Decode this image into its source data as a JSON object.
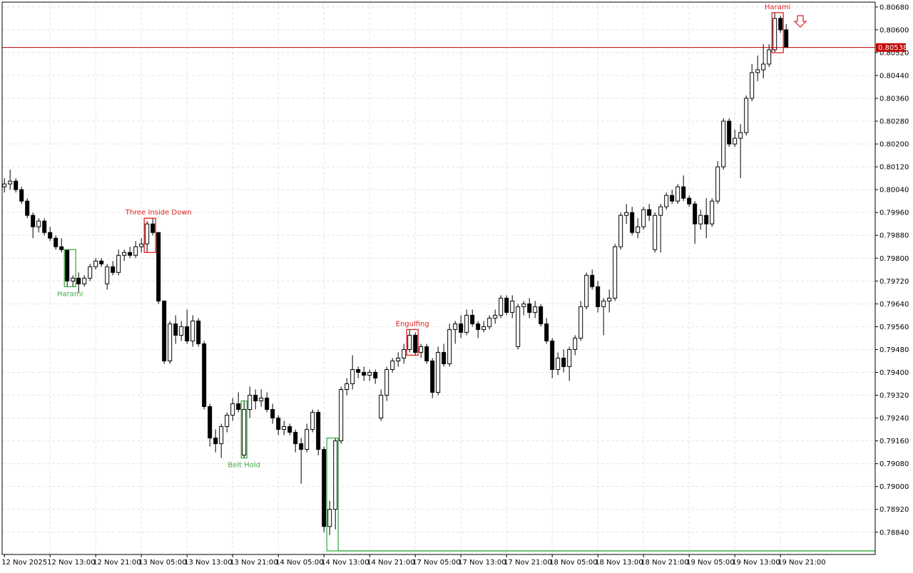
{
  "chart_data": {
    "type": "candlestick",
    "up_color": "#ffffff",
    "down_color": "#000000",
    "outline_color": "#000000",
    "grid": true,
    "xlim": [
      -0.4,
      152.6
    ],
    "ylim": [
      0.78762,
      0.80697
    ],
    "xticks": [
      {
        "value": 0,
        "label": "12 Nov 2025"
      },
      {
        "value": 8,
        "label": "12 Nov 13:00"
      },
      {
        "value": 16,
        "label": "12 Nov 21:00"
      },
      {
        "value": 24,
        "label": "13 Nov 05:00"
      },
      {
        "value": 32,
        "label": "13 Nov 13:00"
      },
      {
        "value": 40,
        "label": "13 Nov 21:00"
      },
      {
        "value": 48,
        "label": "14 Nov 05:00"
      },
      {
        "value": 56,
        "label": "14 Nov 13:00"
      },
      {
        "value": 64,
        "label": "14 Nov 21:00"
      },
      {
        "value": 72,
        "label": "17 Nov 05:00"
      },
      {
        "value": 80,
        "label": "17 Nov 13:00"
      },
      {
        "value": 88,
        "label": "17 Nov 21:00"
      },
      {
        "value": 96,
        "label": "18 Nov 05:00"
      },
      {
        "value": 104,
        "label": "18 Nov 13:00"
      },
      {
        "value": 112,
        "label": "18 Nov 21:00"
      },
      {
        "value": 120,
        "label": "19 Nov 05:00"
      },
      {
        "value": 128,
        "label": "19 Nov 13:00"
      },
      {
        "value": 136,
        "label": "19 Nov 21:00"
      }
    ],
    "yticks": [
      {
        "value": 0.7884,
        "label": "0.78840"
      },
      {
        "value": 0.7892,
        "label": "0.78920"
      },
      {
        "value": 0.79,
        "label": "0.79000"
      },
      {
        "value": 0.7908,
        "label": "0.79080"
      },
      {
        "value": 0.7916,
        "label": "0.79160"
      },
      {
        "value": 0.7924,
        "label": "0.79240"
      },
      {
        "value": 0.7932,
        "label": "0.79320"
      },
      {
        "value": 0.794,
        "label": "0.79400"
      },
      {
        "value": 0.7948,
        "label": "0.79480"
      },
      {
        "value": 0.7956,
        "label": "0.79560"
      },
      {
        "value": 0.7964,
        "label": "0.79640"
      },
      {
        "value": 0.7972,
        "label": "0.79720"
      },
      {
        "value": 0.798,
        "label": "0.79800"
      },
      {
        "value": 0.7988,
        "label": "0.79880"
      },
      {
        "value": 0.7996,
        "label": "0.79960"
      },
      {
        "value": 0.8004,
        "label": "0.80040"
      },
      {
        "value": 0.8012,
        "label": "0.80120"
      },
      {
        "value": 0.802,
        "label": "0.80200"
      },
      {
        "value": 0.8028,
        "label": "0.80280"
      },
      {
        "value": 0.8036,
        "label": "0.80360"
      },
      {
        "value": 0.8044,
        "label": "0.80440"
      },
      {
        "value": 0.8052,
        "label": "0.80520"
      },
      {
        "value": 0.806,
        "label": "0.80600"
      },
      {
        "value": 0.8068,
        "label": "0.80680"
      }
    ],
    "current_price": 0.80538,
    "current_price_color": "#c00000",
    "patterns": [
      {
        "text": "Harami",
        "color": "#3cb043"
      },
      {
        "text": "Three Inside Down",
        "color": "#e02020"
      },
      {
        "text": "Belt Hold",
        "color": "#3cb043"
      },
      {
        "text": "Engulfing",
        "color": "#e02020"
      },
      {
        "text": "Harami",
        "color": "#e02020"
      }
    ],
    "ohlc": [
      [
        0.8005,
        0.8008,
        0.8003,
        0.8006
      ],
      [
        0.8006,
        0.8011,
        0.8004,
        0.8007
      ],
      [
        0.8007,
        0.8008,
        0.8003,
        0.8004
      ],
      [
        0.8004,
        0.8005,
        0.7999,
        0.8
      ],
      [
        0.8,
        0.8001,
        0.7994,
        0.7995
      ],
      [
        0.7995,
        0.7996,
        0.7987,
        0.7991
      ],
      [
        0.7991,
        0.7994,
        0.7989,
        0.7993
      ],
      [
        0.7993,
        0.7994,
        0.7988,
        0.7989
      ],
      [
        0.7989,
        0.7991,
        0.7986,
        0.7987
      ],
      [
        0.7987,
        0.7988,
        0.7983,
        0.7984
      ],
      [
        0.7984,
        0.7987,
        0.7982,
        0.7983
      ],
      [
        0.7983,
        0.7983,
        0.797,
        0.7972
      ],
      [
        0.7972,
        0.7974,
        0.797,
        0.7973
      ],
      [
        0.7973,
        0.7975,
        0.7968,
        0.7971
      ],
      [
        0.7971,
        0.7974,
        0.797,
        0.7973
      ],
      [
        0.7973,
        0.7978,
        0.7972,
        0.7977
      ],
      [
        0.7977,
        0.798,
        0.7976,
        0.7979
      ],
      [
        0.7979,
        0.798,
        0.7977,
        0.7978
      ],
      [
        0.7971,
        0.7978,
        0.7969,
        0.7977
      ],
      [
        0.7977,
        0.7979,
        0.7974,
        0.7975
      ],
      [
        0.7975,
        0.7983,
        0.7974,
        0.7981
      ],
      [
        0.7981,
        0.7983,
        0.7979,
        0.7982
      ],
      [
        0.7982,
        0.7984,
        0.798,
        0.7981
      ],
      [
        0.7981,
        0.7986,
        0.798,
        0.7984
      ],
      [
        0.7984,
        0.7987,
        0.7982,
        0.7985
      ],
      [
        0.7985,
        0.7993,
        0.7982,
        0.7992
      ],
      [
        0.7992,
        0.7994,
        0.7988,
        0.7989
      ],
      [
        0.7989,
        0.7989,
        0.7964,
        0.7965
      ],
      [
        0.7965,
        0.7965,
        0.7943,
        0.7944
      ],
      [
        0.7944,
        0.7958,
        0.7943,
        0.7957
      ],
      [
        0.7957,
        0.796,
        0.795,
        0.7953
      ],
      [
        0.7953,
        0.7958,
        0.7951,
        0.7956
      ],
      [
        0.7956,
        0.7962,
        0.795,
        0.7951
      ],
      [
        0.7951,
        0.796,
        0.7949,
        0.7958
      ],
      [
        0.7958,
        0.7959,
        0.7949,
        0.795
      ],
      [
        0.795,
        0.7951,
        0.7927,
        0.7928
      ],
      [
        0.7928,
        0.7929,
        0.7914,
        0.7917
      ],
      [
        0.7917,
        0.792,
        0.7912,
        0.7915
      ],
      [
        0.7915,
        0.7922,
        0.791,
        0.7921
      ],
      [
        0.7921,
        0.7926,
        0.7919,
        0.7925
      ],
      [
        0.7925,
        0.7931,
        0.7923,
        0.7929
      ],
      [
        0.7929,
        0.7933,
        0.7926,
        0.7927
      ],
      [
        0.7911,
        0.793,
        0.791,
        0.7927
      ],
      [
        0.7927,
        0.7935,
        0.7924,
        0.7932
      ],
      [
        0.7932,
        0.7934,
        0.7927,
        0.793
      ],
      [
        0.793,
        0.7934,
        0.7928,
        0.7931
      ],
      [
        0.7931,
        0.7933,
        0.7926,
        0.7927
      ],
      [
        0.7927,
        0.7929,
        0.7922,
        0.7924
      ],
      [
        0.7924,
        0.7925,
        0.7918,
        0.792
      ],
      [
        0.792,
        0.7923,
        0.7918,
        0.7921
      ],
      [
        0.7921,
        0.7922,
        0.7918,
        0.7919
      ],
      [
        0.7919,
        0.792,
        0.7912,
        0.7915
      ],
      [
        0.7915,
        0.7917,
        0.7901,
        0.7913
      ],
      [
        0.7913,
        0.7922,
        0.7912,
        0.792
      ],
      [
        0.792,
        0.7927,
        0.7919,
        0.7926
      ],
      [
        0.7926,
        0.7927,
        0.7911,
        0.7913
      ],
      [
        0.7913,
        0.7914,
        0.7884,
        0.7886
      ],
      [
        0.7886,
        0.7895,
        0.7883,
        0.7892
      ],
      [
        0.7892,
        0.7917,
        0.7885,
        0.7916
      ],
      [
        0.7916,
        0.7935,
        0.7915,
        0.7934
      ],
      [
        0.7934,
        0.7938,
        0.7932,
        0.7936
      ],
      [
        0.7936,
        0.7946,
        0.7934,
        0.7941
      ],
      [
        0.7941,
        0.7942,
        0.7938,
        0.794
      ],
      [
        0.794,
        0.7942,
        0.7937,
        0.7939
      ],
      [
        0.7939,
        0.7941,
        0.7937,
        0.794
      ],
      [
        0.794,
        0.7941,
        0.7936,
        0.7938
      ],
      [
        0.7924,
        0.7934,
        0.7923,
        0.7932
      ],
      [
        0.7932,
        0.7942,
        0.793,
        0.7941
      ],
      [
        0.7941,
        0.7945,
        0.794,
        0.7944
      ],
      [
        0.7944,
        0.7947,
        0.7942,
        0.7945
      ],
      [
        0.7945,
        0.795,
        0.7943,
        0.7948
      ],
      [
        0.7948,
        0.7955,
        0.7947,
        0.7953
      ],
      [
        0.7953,
        0.7954,
        0.7946,
        0.7947
      ],
      [
        0.7947,
        0.795,
        0.7945,
        0.7949
      ],
      [
        0.7949,
        0.795,
        0.7943,
        0.7944
      ],
      [
        0.7944,
        0.7945,
        0.7931,
        0.7933
      ],
      [
        0.7933,
        0.7949,
        0.7932,
        0.7947
      ],
      [
        0.7947,
        0.795,
        0.7942,
        0.7943
      ],
      [
        0.7943,
        0.7957,
        0.7942,
        0.7955
      ],
      [
        0.7955,
        0.7958,
        0.795,
        0.7957
      ],
      [
        0.7957,
        0.796,
        0.7952,
        0.7954
      ],
      [
        0.7954,
        0.7962,
        0.7953,
        0.796
      ],
      [
        0.796,
        0.7962,
        0.7956,
        0.7957
      ],
      [
        0.7957,
        0.7958,
        0.7952,
        0.7955
      ],
      [
        0.7955,
        0.7958,
        0.7954,
        0.7956
      ],
      [
        0.7956,
        0.796,
        0.7955,
        0.7959
      ],
      [
        0.7959,
        0.7962,
        0.7957,
        0.796
      ],
      [
        0.796,
        0.7967,
        0.7959,
        0.7966
      ],
      [
        0.7966,
        0.7967,
        0.796,
        0.7961
      ],
      [
        0.7961,
        0.7967,
        0.7959,
        0.7965
      ],
      [
        0.7949,
        0.7964,
        0.7948,
        0.7963
      ],
      [
        0.7963,
        0.7965,
        0.796,
        0.7964
      ],
      [
        0.7964,
        0.7966,
        0.7959,
        0.7961
      ],
      [
        0.7961,
        0.7965,
        0.7959,
        0.7963
      ],
      [
        0.7963,
        0.7964,
        0.7956,
        0.7957
      ],
      [
        0.7957,
        0.7959,
        0.795,
        0.7951
      ],
      [
        0.7951,
        0.7952,
        0.7938,
        0.7941
      ],
      [
        0.7941,
        0.7947,
        0.7939,
        0.7945
      ],
      [
        0.7945,
        0.7948,
        0.794,
        0.7942
      ],
      [
        0.7942,
        0.7949,
        0.7937,
        0.7948
      ],
      [
        0.7948,
        0.7953,
        0.7946,
        0.7952
      ],
      [
        0.7952,
        0.7965,
        0.7951,
        0.7963
      ],
      [
        0.7963,
        0.7975,
        0.7962,
        0.7974
      ],
      [
        0.7974,
        0.7976,
        0.7969,
        0.797
      ],
      [
        0.797,
        0.7972,
        0.7961,
        0.7963
      ],
      [
        0.7963,
        0.7966,
        0.7953,
        0.7965
      ],
      [
        0.7965,
        0.7969,
        0.7961,
        0.7966
      ],
      [
        0.7966,
        0.7985,
        0.7965,
        0.7984
      ],
      [
        0.7984,
        0.7996,
        0.7983,
        0.7995
      ],
      [
        0.7995,
        0.7999,
        0.7992,
        0.7996
      ],
      [
        0.7996,
        0.7998,
        0.7988,
        0.7989
      ],
      [
        0.7989,
        0.7994,
        0.7987,
        0.7991
      ],
      [
        0.7991,
        0.7998,
        0.799,
        0.7997
      ],
      [
        0.7997,
        0.7999,
        0.7993,
        0.7995
      ],
      [
        0.7983,
        0.7996,
        0.7982,
        0.7995
      ],
      [
        0.7995,
        0.7999,
        0.7982,
        0.7998
      ],
      [
        0.7998,
        0.8003,
        0.7997,
        0.8002
      ],
      [
        0.8002,
        0.8004,
        0.7999,
        0.8
      ],
      [
        0.8,
        0.8006,
        0.7999,
        0.8005
      ],
      [
        0.8005,
        0.8009,
        0.8,
        0.8001
      ],
      [
        0.8001,
        0.8002,
        0.7998,
        0.7999
      ],
      [
        0.7999,
        0.8,
        0.7985,
        0.7992
      ],
      [
        0.7992,
        0.7997,
        0.799,
        0.7995
      ],
      [
        0.7995,
        0.8001,
        0.7987,
        0.7992
      ],
      [
        0.7992,
        0.8001,
        0.7991,
        0.8
      ],
      [
        0.8,
        0.8014,
        0.7999,
        0.8012
      ],
      [
        0.8012,
        0.8029,
        0.8011,
        0.8028
      ],
      [
        0.8028,
        0.8029,
        0.8019,
        0.802
      ],
      [
        0.802,
        0.8025,
        0.8019,
        0.8022
      ],
      [
        0.8022,
        0.8027,
        0.8008,
        0.8024
      ],
      [
        0.8024,
        0.8037,
        0.8023,
        0.8036
      ],
      [
        0.8036,
        0.8048,
        0.8035,
        0.8045
      ],
      [
        0.8045,
        0.8051,
        0.8042,
        0.8046
      ],
      [
        0.8046,
        0.8055,
        0.8043,
        0.8048
      ],
      [
        0.8048,
        0.8055,
        0.8047,
        0.8053
      ],
      [
        0.8053,
        0.8066,
        0.8052,
        0.8064
      ],
      [
        0.8064,
        0.8065,
        0.8059,
        0.806
      ],
      [
        0.806,
        0.8062,
        0.8054,
        0.80538
      ]
    ]
  }
}
